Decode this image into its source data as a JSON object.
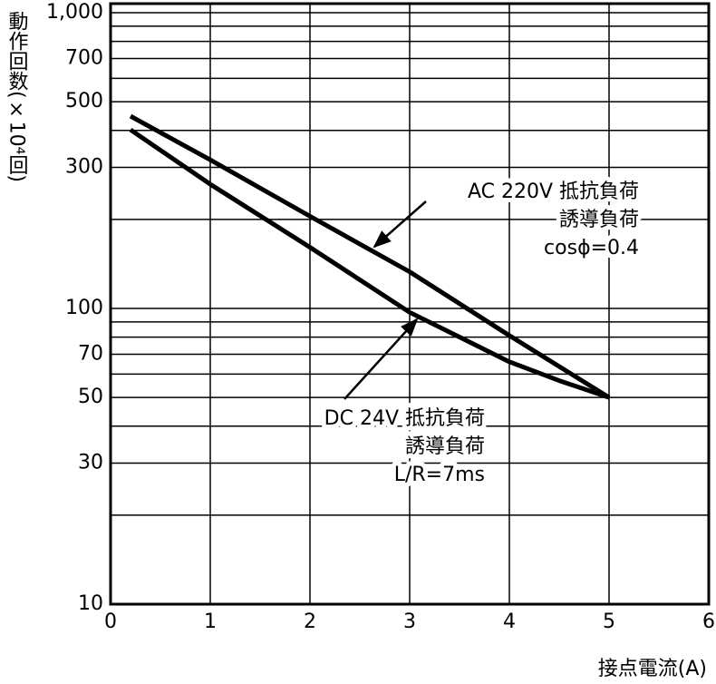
{
  "chart_data": {
    "type": "line",
    "y_label": "動作回数(×10⁴回)",
    "x_label": "接点電流(A)",
    "xlim": [
      0,
      6
    ],
    "xticks": [
      0,
      1,
      2,
      3,
      4,
      5,
      6
    ],
    "ylim": [
      10,
      1000
    ],
    "log_y": true,
    "yticks": [
      10,
      30,
      50,
      70,
      100,
      300,
      500,
      700,
      {
        "value": 1000,
        "label": "1,000"
      }
    ],
    "minor_yticks": [
      20,
      40,
      60,
      80,
      90,
      200,
      400,
      600,
      800,
      900
    ],
    "grid": true,
    "series": [
      {
        "name": "AC 220V 抵抗負荷",
        "color": "#000000",
        "x": [
          0.2,
          1,
          2,
          3,
          4,
          5
        ],
        "values": [
          447,
          318,
          205,
          133,
          81,
          50
        ]
      },
      {
        "name": "DC 24V  抵抗負荷",
        "color": "#000000",
        "x": [
          0.2,
          1,
          2,
          3,
          4,
          4.5,
          5
        ],
        "values": [
          402,
          263,
          161,
          97,
          66,
          57,
          50
        ]
      }
    ],
    "annotations": [
      {
        "lines": [
          "AC 220V 抵抗負荷",
          "誘導負荷",
          "cosϕ=0.4"
        ]
      },
      {
        "lines": [
          "DC 24V  抵抗負荷",
          "誘導負荷",
          "L/R=7ms"
        ]
      }
    ]
  }
}
